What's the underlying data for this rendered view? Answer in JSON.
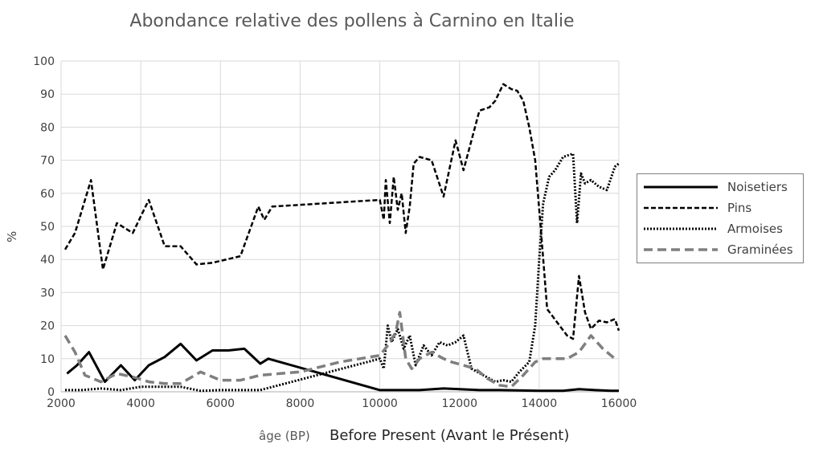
{
  "chart_data": {
    "type": "line",
    "title": "Abondance relative des pollens à Carnino en Italie",
    "ylabel": "%",
    "xlabel_small": "âge (BP)",
    "xlabel": "Before Present (Avant le Présent)",
    "xlim": [
      2000,
      16000
    ],
    "ylim": [
      0,
      100
    ],
    "x_ticks": [
      "2000",
      "4000",
      "6000",
      "8000",
      "10000",
      "12000",
      "14000",
      "16000"
    ],
    "y_ticks": [
      "0",
      "10",
      "20",
      "30",
      "40",
      "50",
      "60",
      "70",
      "80",
      "90",
      "100"
    ],
    "grid": true,
    "legend_position": "right",
    "series": [
      {
        "name": "Noisetiers",
        "style": "solid",
        "color": "#000000",
        "x": [
          2150,
          2400,
          2700,
          3100,
          3500,
          3850,
          4200,
          4600,
          5000,
          5400,
          5800,
          6200,
          6600,
          7000,
          7200,
          10000,
          11000,
          11600,
          12000,
          12500,
          13000,
          14000,
          14600,
          15000,
          15400,
          15800,
          16000
        ],
        "y": [
          5.5,
          8,
          12,
          3,
          8,
          3.5,
          8,
          10.5,
          14.5,
          9.5,
          12.5,
          12.5,
          13,
          8.5,
          10,
          0.5,
          0.5,
          1,
          0.8,
          0.5,
          0.5,
          0.3,
          0.3,
          0.8,
          0.5,
          0.3,
          0.3
        ]
      },
      {
        "name": "Pins",
        "style": "dashed",
        "color": "#000000",
        "x": [
          2100,
          2350,
          2750,
          3050,
          3400,
          3800,
          4200,
          4600,
          5000,
          5400,
          5800,
          6500,
          6950,
          7100,
          7300,
          10000,
          10100,
          10150,
          10250,
          10350,
          10450,
          10550,
          10650,
          10750,
          10850,
          11000,
          11300,
          11600,
          11900,
          12100,
          12300,
          12500,
          12750,
          12900,
          13100,
          13300,
          13450,
          13600,
          13750,
          13900,
          14050,
          14200,
          14450,
          14700,
          14850,
          15000,
          15150,
          15300,
          15500,
          15700,
          15900,
          16000
        ],
        "y": [
          43,
          48,
          64,
          37,
          51,
          48,
          58,
          44,
          44,
          38.5,
          39,
          41,
          56,
          52,
          56,
          58,
          52,
          64,
          51,
          65,
          55,
          60,
          48,
          56,
          69,
          71,
          70,
          59,
          76,
          67,
          76,
          85,
          86,
          88,
          93,
          91.5,
          91,
          88,
          80,
          70,
          48,
          25,
          21,
          17,
          16,
          35,
          24,
          19,
          21.5,
          21,
          22,
          18.5
        ]
      },
      {
        "name": "Armoises",
        "style": "dotted",
        "color": "#000000",
        "x": [
          2100,
          2500,
          3000,
          3500,
          4000,
          4500,
          5000,
          5500,
          6000,
          6500,
          7000,
          10000,
          10100,
          10200,
          10300,
          10450,
          10600,
          10750,
          10900,
          11100,
          11300,
          11500,
          11700,
          11900,
          12100,
          12300,
          12600,
          12900,
          13100,
          13300,
          13500,
          13750,
          13900,
          14000,
          14100,
          14250,
          14400,
          14600,
          14850,
          14950,
          15050,
          15150,
          15300,
          15500,
          15700,
          15900,
          16000
        ],
        "y": [
          0.5,
          0.5,
          1,
          0.5,
          1.5,
          1.5,
          1.5,
          0.3,
          0.5,
          0.5,
          0.5,
          10,
          7,
          20,
          15,
          19,
          13,
          17,
          8,
          14,
          11,
          15,
          14,
          15,
          17,
          7,
          5,
          3,
          3.5,
          3,
          6,
          9,
          20,
          40,
          57,
          65,
          67,
          71,
          72,
          51,
          66,
          63,
          64,
          62,
          61,
          68,
          69
        ]
      },
      {
        "name": "Graminées",
        "style": "long-dashed",
        "color": "#7f7f7f",
        "x": [
          2100,
          2350,
          2600,
          3000,
          3400,
          3800,
          4200,
          4600,
          5000,
          5500,
          6000,
          6500,
          7000,
          7500,
          8000,
          9000,
          10000,
          10200,
          10400,
          10500,
          10650,
          10800,
          11000,
          11300,
          11600,
          11800,
          12100,
          12400,
          12700,
          13000,
          13300,
          13600,
          13900,
          14100,
          14400,
          14700,
          15000,
          15300,
          15600,
          15900
        ],
        "y": [
          17,
          12,
          5,
          3,
          5.5,
          4.5,
          3,
          2.5,
          2.5,
          6,
          3.5,
          3.5,
          5,
          5.5,
          6,
          9,
          11,
          14,
          18,
          24,
          10,
          7,
          10,
          12,
          10,
          9,
          8,
          7,
          4,
          2,
          1.5,
          5,
          9,
          10,
          10,
          10,
          12,
          17,
          13,
          10
        ]
      }
    ]
  }
}
